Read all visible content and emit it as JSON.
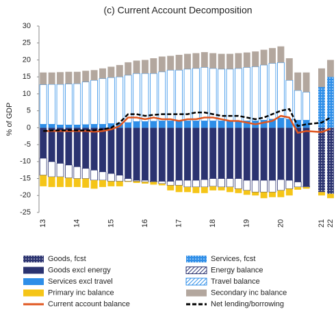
{
  "chart_data": {
    "type": "bar",
    "stacked": true,
    "title": "(c) Current Account Decomposition",
    "y_label": "% of GDP",
    "categories": [
      "13",
      null,
      null,
      null,
      "14",
      null,
      null,
      null,
      "15",
      null,
      null,
      null,
      "16",
      null,
      null,
      null,
      "17",
      null,
      null,
      null,
      "18",
      null,
      null,
      null,
      "19",
      null,
      null,
      null,
      "20",
      null,
      null,
      null,
      "21",
      "22"
    ],
    "ylim": [
      -25,
      30
    ],
    "yticks": [
      30,
      25,
      20,
      15,
      10,
      5,
      0,
      -5,
      -10,
      -15,
      -20,
      -25
    ],
    "series": [
      {
        "name": "Goods, fcst",
        "color": "#2b3370",
        "pattern": "dots",
        "values": [
          null,
          null,
          null,
          null,
          null,
          null,
          null,
          null,
          null,
          null,
          null,
          null,
          null,
          null,
          null,
          null,
          null,
          null,
          null,
          null,
          null,
          null,
          null,
          null,
          null,
          null,
          null,
          null,
          null,
          null,
          null,
          null,
          -19,
          -19.5
        ]
      },
      {
        "name": "Services, fcst",
        "color": "#2e8ee8",
        "pattern": "dots",
        "values": [
          null,
          null,
          null,
          null,
          null,
          null,
          null,
          null,
          null,
          null,
          null,
          null,
          null,
          null,
          null,
          null,
          null,
          null,
          null,
          null,
          null,
          null,
          null,
          null,
          null,
          null,
          null,
          null,
          null,
          null,
          null,
          null,
          12,
          15
        ]
      },
      {
        "name": "Goods excl energy",
        "color": "#2b3370",
        "values": [
          -9,
          -10,
          -10.5,
          -11,
          -11.5,
          -12,
          -12.5,
          -13,
          -13.5,
          -14,
          -15,
          -15.5,
          -15.5,
          -15.8,
          -15.8,
          -15.8,
          -15.5,
          -15.5,
          -15.5,
          -15.3,
          -15,
          -15,
          -15,
          -15,
          -15.5,
          -15.5,
          -15.5,
          -15.5,
          -15.3,
          -15.5,
          -16,
          -17.3,
          null,
          null
        ]
      },
      {
        "name": "Energy balance",
        "color": "#2b3370",
        "pattern": "outline",
        "values": [
          -5,
          -4.5,
          -4,
          -3.8,
          -3.5,
          -3,
          -3,
          -2.5,
          -2.3,
          -1.8,
          -0.8,
          -0.3,
          -0.5,
          -0.2,
          -0.7,
          -1.2,
          -1.5,
          -2,
          -2,
          -2.2,
          -2.3,
          -2.5,
          -2.5,
          -3,
          -3,
          -3.5,
          -3.5,
          -3.5,
          -3.2,
          -2.5,
          -1.5,
          -0.2,
          null,
          null
        ]
      },
      {
        "name": "Services excl travel",
        "color": "#2e8ee8",
        "values": [
          1,
          1,
          0.8,
          0.8,
          0.8,
          0.9,
          1,
          1,
          1.2,
          1.4,
          1.5,
          1.8,
          1.8,
          1.9,
          2,
          2,
          2,
          2,
          2,
          2,
          2,
          2,
          2,
          2,
          2,
          2,
          2.2,
          2.5,
          2.8,
          2.5,
          2.2,
          2.2,
          null,
          null
        ]
      },
      {
        "name": "Travel balance",
        "color": "#2e8ee8",
        "pattern": "outline",
        "values": [
          11.7,
          11.8,
          12,
          12.1,
          12.2,
          12.6,
          13,
          13.5,
          13.6,
          13.6,
          14,
          14.2,
          14.2,
          14.1,
          14.5,
          15,
          15,
          15.3,
          15.5,
          15.8,
          15.5,
          15.3,
          15.3,
          15.5,
          15.8,
          16,
          16.3,
          16.5,
          16.4,
          11.5,
          8.8,
          8.3,
          null,
          null
        ]
      },
      {
        "name": "Primary inc balance",
        "color": "#f5c518",
        "values": [
          -3.3,
          -3,
          -3,
          -2.7,
          -2.5,
          -2.7,
          -2.5,
          -2,
          -1.5,
          -1.5,
          -0.2,
          -0.5,
          -0.5,
          -0.8,
          -0.5,
          -1.5,
          -2,
          -1.5,
          -1.8,
          -1.8,
          -1.2,
          -1,
          -1.5,
          -1.3,
          -1.3,
          -1,
          -1.8,
          -1.5,
          -2,
          -2,
          -0.8,
          -0.5,
          -1,
          -1.3
        ]
      },
      {
        "name": "Secondary inc balance",
        "color": "#b3a79e",
        "values": [
          3.6,
          3.5,
          3.6,
          3.6,
          3.5,
          3.3,
          3,
          3,
          3.2,
          3.5,
          3.8,
          3.8,
          4,
          4.5,
          4.5,
          4.2,
          4.5,
          4.5,
          4.5,
          4.5,
          4.5,
          4.5,
          4.5,
          4.5,
          4.4,
          4.5,
          4.5,
          4.5,
          4.8,
          6.5,
          5.3,
          5.8,
          5.5,
          5
        ]
      },
      {
        "name": "Current account balance",
        "color": "#e0561f",
        "kind": "line",
        "values": [
          -1,
          -1,
          -1,
          -1,
          -1,
          -1,
          -1.2,
          -1,
          -0.5,
          0.5,
          3,
          3,
          2.5,
          3,
          2.5,
          2.5,
          2,
          2.5,
          2.5,
          3,
          3,
          2.5,
          2,
          2,
          1.5,
          1,
          1.5,
          2,
          3.5,
          3,
          -1.5,
          -1,
          -1.3,
          -0.3
        ]
      },
      {
        "name": "Net lending/borrowing",
        "color": "#000000",
        "kind": "line",
        "dashed": true,
        "values": [
          -1,
          -0.8,
          -0.8,
          -0.7,
          -0.8,
          -0.8,
          -0.8,
          -0.5,
          0,
          1.5,
          4,
          4,
          3.5,
          3.8,
          4,
          4,
          4,
          4,
          4.5,
          4.5,
          4,
          3.5,
          3.5,
          3.5,
          3,
          2.5,
          3,
          4,
          5,
          5.5,
          0.5,
          1,
          1.5,
          3
        ]
      }
    ]
  }
}
